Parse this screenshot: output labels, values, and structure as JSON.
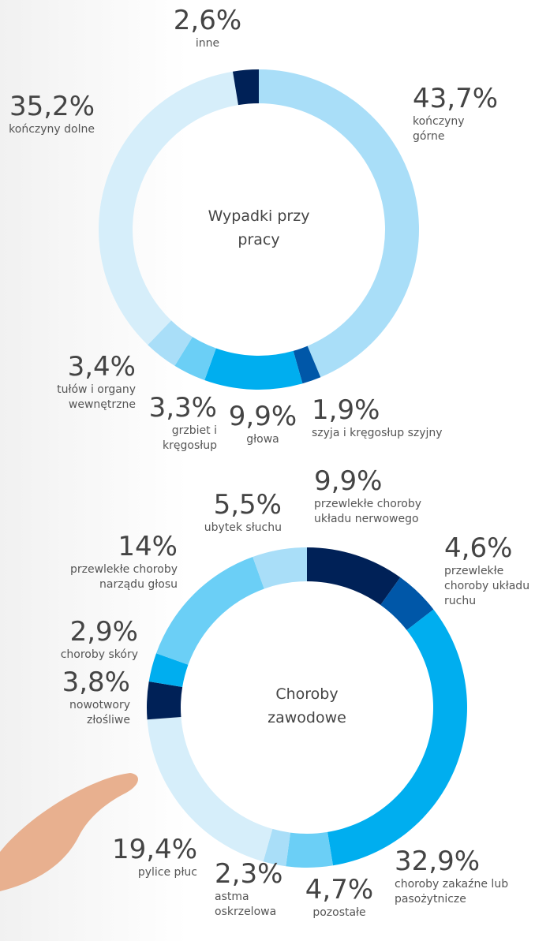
{
  "chart_data": [
    {
      "type": "pie",
      "title": "Wypadki przy pracy",
      "categories": [
        "kończyny górne",
        "szyja i kręgosłup szyjny",
        "głowa",
        "grzbiet i kręgosłup",
        "tułów i organy wewnętrzne",
        "kończyny dolne",
        "inne"
      ],
      "values": [
        43.7,
        1.9,
        9.9,
        3.3,
        3.4,
        35.2,
        2.6
      ],
      "value_labels": [
        "43,7%",
        "1,9%",
        "9,9%",
        "3,3%",
        "3,4%",
        "35,2%",
        "2,6%"
      ],
      "colors": [
        "#a9def8",
        "#0057a8",
        "#00aeef",
        "#6bcff6",
        "#a9def8",
        "#d6eefa",
        "#002157"
      ]
    },
    {
      "type": "pie",
      "title": "Choroby zawodowe",
      "categories": [
        "przewlekłe choroby układu nerwowego",
        "przewlekłe choroby układu ruchu",
        "choroby zakaźne lub pasożytnicze",
        "pozostałe",
        "astma oskrzelowa",
        "pylice płuc",
        "nowotwory złośliwe",
        "choroby skóry",
        "przewlekłe choroby narządu głosu",
        "ubytek słuchu"
      ],
      "values": [
        9.9,
        4.6,
        32.9,
        4.7,
        2.3,
        19.4,
        3.8,
        2.9,
        14,
        5.5
      ],
      "value_labels": [
        "9,9%",
        "4,6%",
        "32,9%",
        "4,7%",
        "2,3%",
        "19,4%",
        "3,8%",
        "2,9%",
        "14%",
        "5,5%"
      ],
      "colors": [
        "#002157",
        "#0057a8",
        "#00aeef",
        "#6bcff6",
        "#a9def8",
        "#d6eefa",
        "#002157",
        "#00aeef",
        "#6bcff6",
        "#a9def8"
      ]
    }
  ]
}
